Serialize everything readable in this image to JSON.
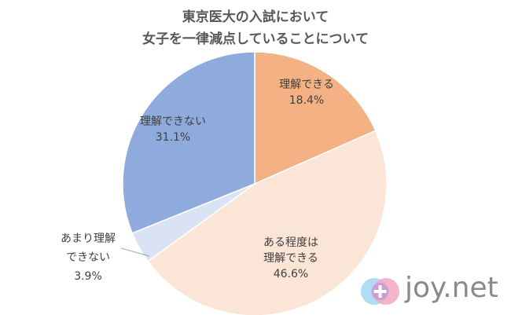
{
  "title": {
    "line1": "東京医大の入試において",
    "line2": "女子を一律減点していることについて"
  },
  "chart_data": {
    "type": "pie",
    "title": "東京医大の入試において女子を一律減点していることについて",
    "start": "12 o'clock",
    "direction": "clockwise",
    "slices": [
      {
        "label_lines": [
          "理解できる"
        ],
        "value": 18.4,
        "value_text": "18.4%",
        "color": "#F4B183"
      },
      {
        "label_lines": [
          "ある程度は",
          "理解できる"
        ],
        "value": 46.6,
        "value_text": "46.6%",
        "color": "#FBE5D6"
      },
      {
        "label_lines": [
          "あまり理解",
          "できない"
        ],
        "value": 3.9,
        "value_text": "3.9%",
        "color": "#DAE3F3"
      },
      {
        "label_lines": [
          "理解できない"
        ],
        "value": 31.1,
        "value_text": "31.1%",
        "color": "#8FAADC"
      }
    ]
  },
  "logo": {
    "text": "joy.net"
  }
}
